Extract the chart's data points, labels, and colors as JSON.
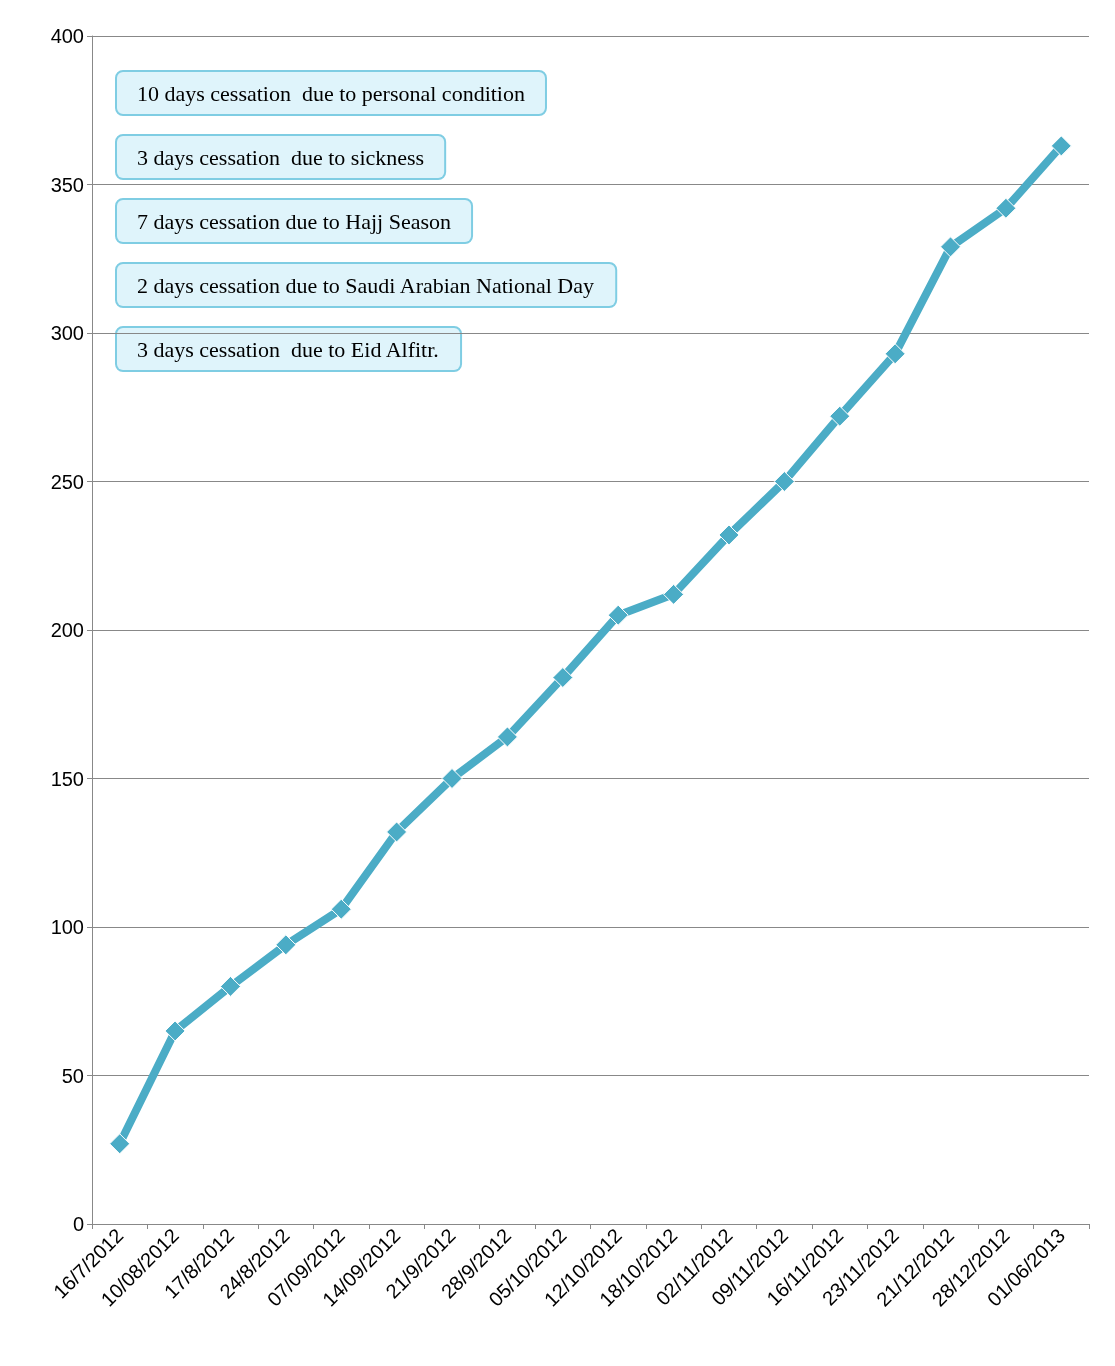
{
  "chart_data": {
    "type": "line",
    "categories": [
      "16/7/2012",
      "10/08/2012",
      "17/8/2012",
      "24/8/2012",
      "07/09/2012",
      "14/09/2012",
      "21/9/2012",
      "28/9/2012",
      "05/10/2012",
      "12/10/2012",
      "18/10/2012",
      "02/11/2012",
      "09/11/2012",
      "16/11/2012",
      "23/11/2012",
      "21/12/2012",
      "28/12/2012",
      "01/06/2013"
    ],
    "series": [
      {
        "color": "#4bacc6",
        "values": [
          27,
          65,
          80,
          94,
          106,
          132,
          150,
          164,
          184,
          205,
          212,
          232,
          250,
          272,
          293,
          329,
          342,
          363
        ]
      }
    ],
    "ylim": [
      0,
      400
    ],
    "yticks": [
      0,
      50,
      100,
      150,
      200,
      250,
      300,
      350,
      400
    ],
    "grid": "y",
    "marker": "diamond",
    "line_style": "solid",
    "annotations": [
      "10 days cessation  due to personal condition",
      "3 days cessation  due to sickness",
      "7 days cessation due to Hajj Season",
      "2 days cessation due to Saudi Arabian National Day",
      "3 days cessation  due to Eid Alfitr."
    ]
  }
}
